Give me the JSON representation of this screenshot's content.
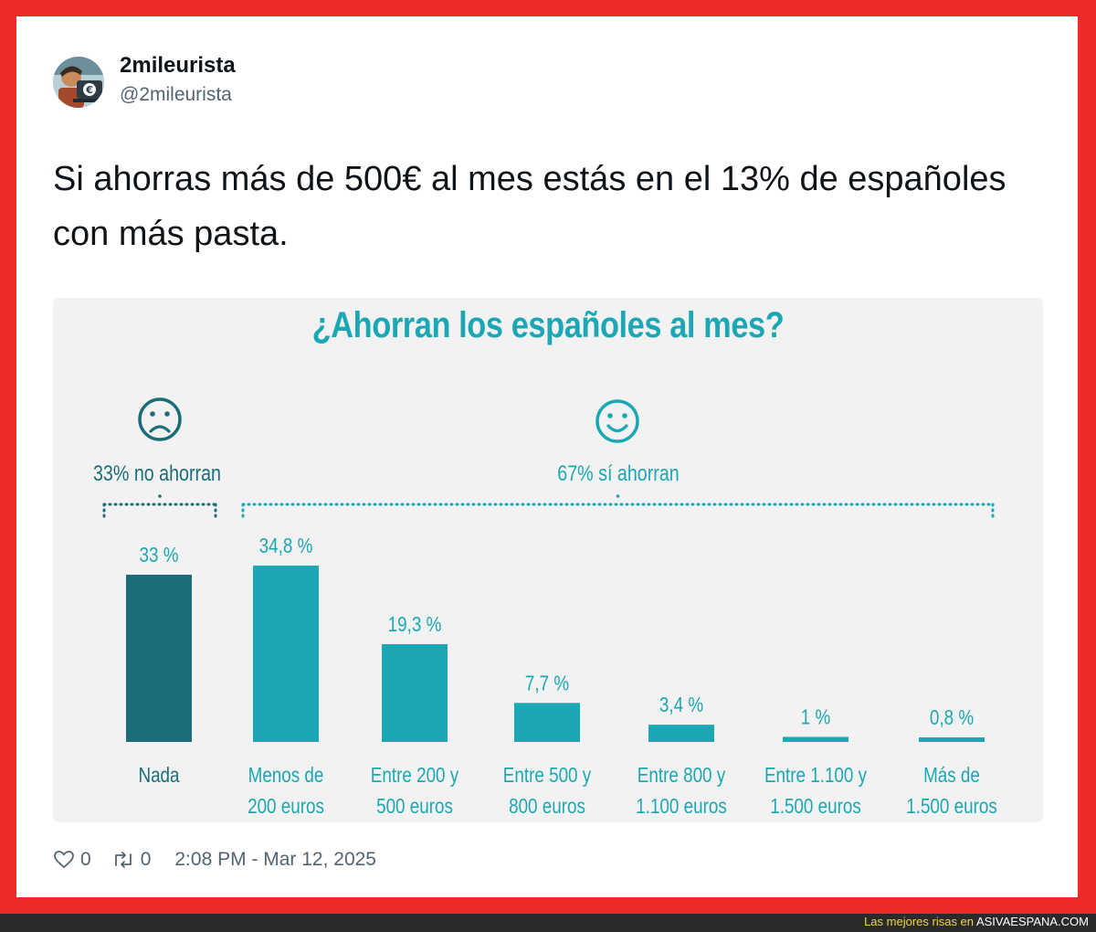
{
  "tweet": {
    "display_name": "2mileurista",
    "handle": "@2mileurista",
    "text": "Si ahorras más de 500€ al mes estás en el 13% de españoles con más pasta.",
    "likes": "0",
    "retweets": "0",
    "timestamp": "2:08 PM - Mar 12, 2025"
  },
  "colors": {
    "accent": "#1ba7b4",
    "dark_bar": "#1c6d7a",
    "frame": "#ee2b2b"
  },
  "chart_data": {
    "type": "bar",
    "title": "¿Ahorran los españoles al mes?",
    "groups": [
      {
        "label": "33% no ahorran",
        "icon": "sad-face-icon"
      },
      {
        "label": "67% sí ahorran",
        "icon": "happy-face-icon"
      }
    ],
    "categories": [
      [
        "Nada"
      ],
      [
        "Menos de",
        "200 euros"
      ],
      [
        "Entre 200 y",
        "500 euros"
      ],
      [
        "Entre 500 y",
        "800 euros"
      ],
      [
        "Entre 800 y",
        "1.100 euros"
      ],
      [
        "Entre 1.100 y",
        "1.500 euros"
      ],
      [
        "Más de",
        "1.500 euros"
      ]
    ],
    "values": [
      33,
      34.8,
      19.3,
      7.7,
      3.4,
      1,
      0.8
    ],
    "value_labels": [
      "33 %",
      "34,8 %",
      "19,3 %",
      "7,7 %",
      "3,4 %",
      "1 %",
      "0,8 %"
    ],
    "ylim": [
      0,
      35
    ]
  },
  "watermark": {
    "prefix": "Las mejores risas en",
    "brand": "ASIVAESPANA.COM"
  }
}
